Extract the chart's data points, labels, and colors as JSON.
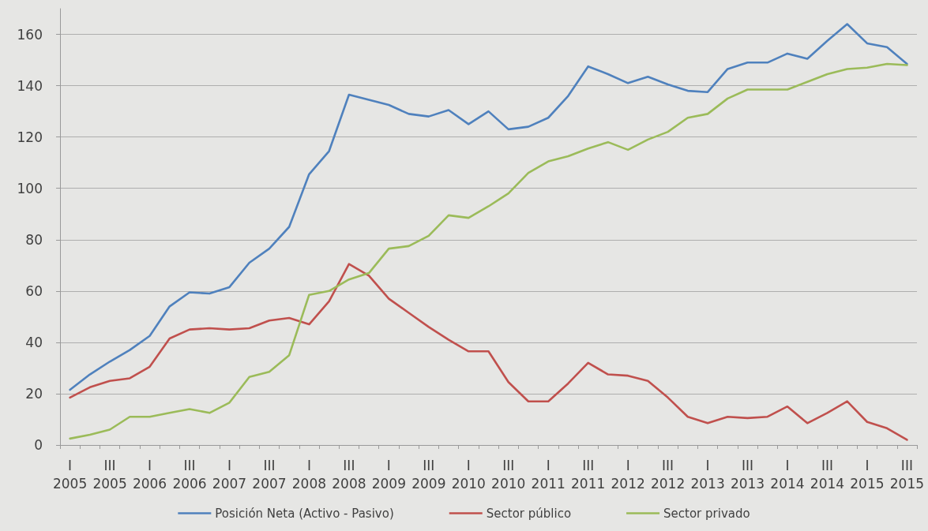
{
  "chart_data": {
    "type": "line",
    "categories": [
      "I\n2005",
      null,
      "III\n2005",
      null,
      "I\n2006",
      null,
      "III\n2006",
      null,
      "I\n2007",
      null,
      "III\n2007",
      null,
      "I\n2008",
      null,
      "III\n2008",
      null,
      "I\n2009",
      null,
      "III\n2009",
      null,
      "I\n2010",
      null,
      "III\n2010",
      null,
      "I\n2011",
      null,
      "III\n2011",
      null,
      "I\n2012",
      null,
      "III\n2012",
      null,
      "I\n2013",
      null,
      "III\n2013",
      null,
      "I\n2014",
      null,
      "III\n2014",
      null,
      "I\n2015",
      null,
      "III\n2015"
    ],
    "series": [
      {
        "name": "Posición Neta (Activo - Pasivo)",
        "color": "#4f81bd",
        "values": [
          21.5,
          27.5,
          32.5,
          37,
          42.5,
          54,
          59.5,
          59,
          61.5,
          71,
          76.5,
          85,
          105.5,
          114.5,
          136.5,
          134.5,
          132.5,
          129,
          128,
          130.5,
          125,
          130,
          123,
          124,
          127.5,
          136,
          147.5,
          144.5,
          141,
          143.5,
          140.5,
          138,
          137.5,
          146.5,
          149,
          149,
          152.5,
          150.5,
          157.5,
          164,
          156.5,
          155,
          148.5
        ]
      },
      {
        "name": "Sector público",
        "color": "#c0504d",
        "values": [
          18.5,
          22.5,
          25,
          26,
          30.5,
          41.5,
          45,
          45.5,
          45,
          45.5,
          48.5,
          49.5,
          47,
          56,
          70.5,
          66,
          57,
          51.5,
          46,
          41,
          36.5,
          36.5,
          24.5,
          17,
          17,
          24,
          32,
          27.5,
          27,
          25,
          18.5,
          11,
          8.5,
          11,
          10.5,
          11,
          15,
          8.5,
          12.5,
          17,
          9,
          6.5,
          2
        ]
      },
      {
        "name": "Sector privado",
        "color": "#9bbb59",
        "values": [
          2.5,
          4,
          6,
          11,
          11,
          12.5,
          14,
          12.5,
          16.5,
          26.5,
          28.5,
          35,
          58.5,
          60,
          64.5,
          67,
          76.5,
          77.5,
          81.5,
          89.5,
          88.5,
          93,
          98,
          106,
          110.5,
          112.5,
          115.5,
          118,
          115,
          119,
          122,
          127.5,
          129,
          135,
          138.5,
          138.5,
          138.5,
          141.5,
          144.5,
          146.5,
          147,
          148.5,
          148
        ]
      }
    ],
    "ylim": [
      0,
      170
    ],
    "yticks": [
      0,
      20,
      40,
      60,
      80,
      100,
      120,
      140,
      160
    ],
    "grid": "y",
    "legend": "bottom",
    "marker": "none",
    "line_style": "solid"
  }
}
